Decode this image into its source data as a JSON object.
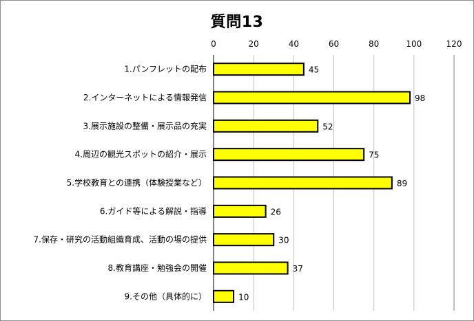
{
  "chart_data": {
    "type": "bar",
    "orientation": "horizontal",
    "title": "質問13",
    "categories": [
      "1.パンフレットの配布",
      "2.インターネットによる情報発信",
      "3.展示施設の整備・展示品の充実",
      "4.周辺の観光スポットの紹介・展示",
      "5.学校教育との連携（体験授業など）",
      "6.ガイド等による解説・指導",
      "7.保存・研究の活動組織育成、活動の場の提供",
      "8.教育講座・勉強会の開催",
      "9.その他（具体的に）"
    ],
    "values": [
      45,
      98,
      52,
      75,
      89,
      26,
      30,
      37,
      10
    ],
    "xlim": [
      0,
      120
    ],
    "xticks": [
      0,
      20,
      40,
      60,
      80,
      100,
      120
    ],
    "tick_labels": [
      "0",
      "20",
      "40",
      "60",
      "80",
      "100",
      "120"
    ],
    "grid": true,
    "data_labels": true,
    "bar_color": "#ffff00",
    "bar_border_color": "#000000",
    "grid_color": "#bfbfbf"
  }
}
